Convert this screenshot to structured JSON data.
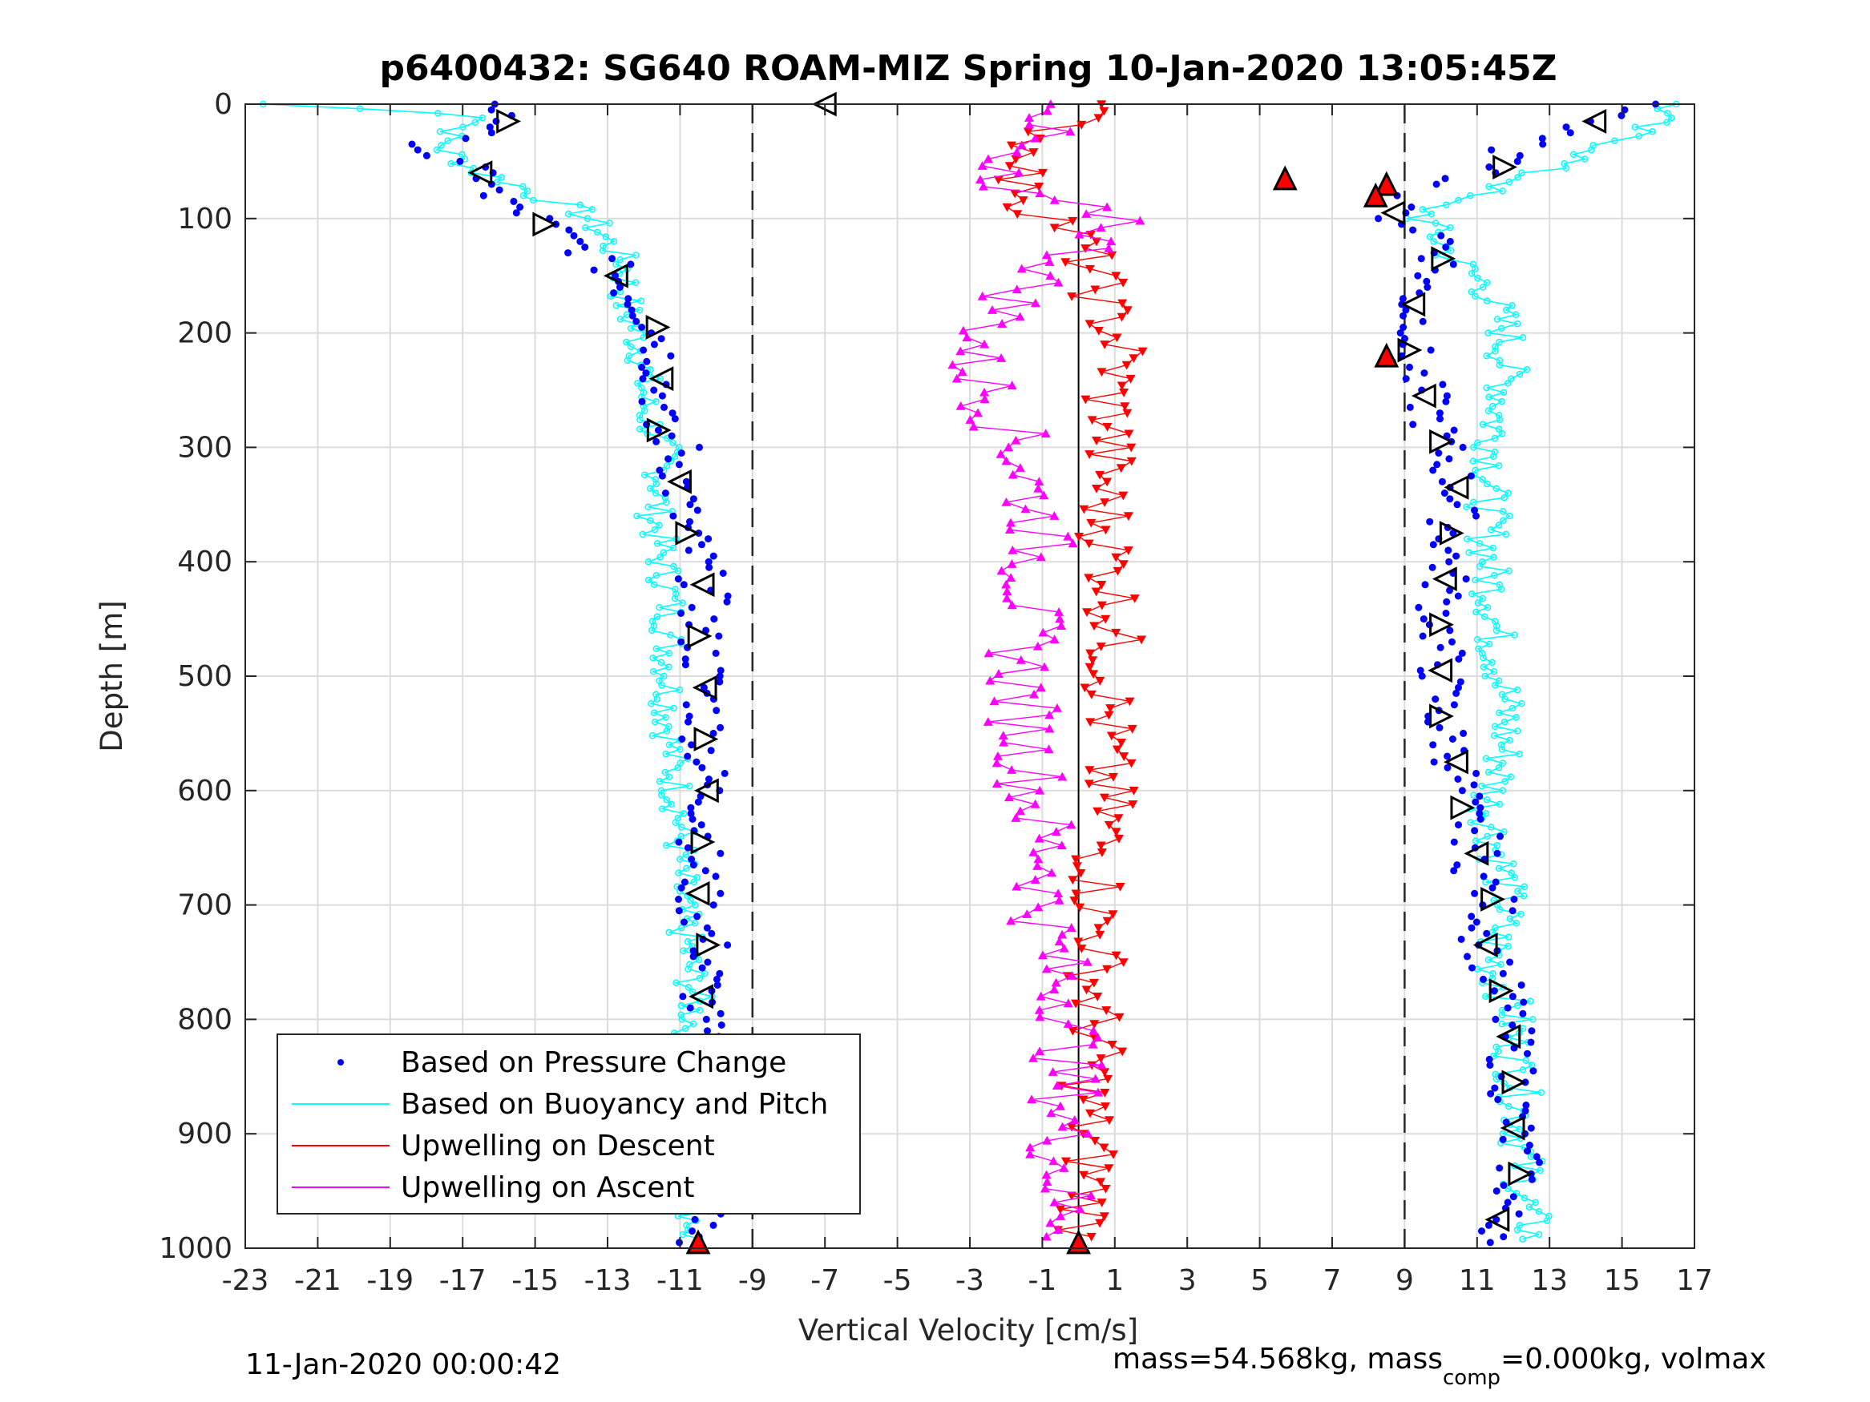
{
  "chart_data": {
    "type": "scatter",
    "title": "p6400432: SG640 ROAM-MIZ Spring 10-Jan-2020 13:05:45Z",
    "xlabel": "Vertical Velocity [cm/s]",
    "ylabel": "Depth [m]",
    "xlim": [
      -23,
      17
    ],
    "ylim": [
      1000,
      0
    ],
    "x_ticks": [
      "-23",
      "-21",
      "-19",
      "-17",
      "-15",
      "-13",
      "-11",
      "-9",
      "-7",
      "-5",
      "-3",
      "-1",
      "1",
      "3",
      "5",
      "7",
      "9",
      "11",
      "13",
      "15",
      "17"
    ],
    "y_ticks": [
      "0",
      "100",
      "200",
      "300",
      "400",
      "500",
      "600",
      "700",
      "800",
      "900",
      "1000"
    ],
    "grid": true,
    "reference_lines": {
      "dashed_x": [
        -9,
        9
      ],
      "solid_x": [
        0
      ]
    },
    "legend_position": "bottom-left",
    "series": [
      {
        "name": "Based on Pressure Change",
        "color": "#0000ff",
        "marker": "dot",
        "descent": {
          "depth": [
            0,
            10,
            20,
            30,
            40,
            50,
            60,
            70,
            80,
            90,
            100,
            120,
            140,
            160,
            180,
            200,
            220,
            240,
            260,
            280,
            300,
            330,
            360,
            400,
            430,
            460,
            500,
            540,
            580,
            620,
            660,
            700,
            740,
            780,
            820,
            860,
            900,
            940,
            980,
            995
          ],
          "values": [
            -16.5,
            -15.5,
            -16,
            -17.5,
            -18,
            -17.5,
            -16.5,
            -16,
            -16.5,
            -15.5,
            -15,
            -14,
            -13,
            -12.5,
            -12,
            -11.5,
            -11.5,
            -11.5,
            -11.5,
            -11.8,
            -11,
            -11,
            -11,
            -10.5,
            -10.3,
            -10.5,
            -10.3,
            -10.3,
            -10.3,
            -10.2,
            -10.5,
            -10.5,
            -10.2,
            -10.4,
            -10.5,
            -10.7,
            -10.4,
            -10.2,
            -10.5,
            -10.7
          ]
        },
        "ascent": {
          "depth": [
            995,
            980,
            960,
            940,
            900,
            870,
            850,
            820,
            790,
            760,
            730,
            700,
            670,
            640,
            610,
            580,
            540,
            500,
            470,
            440,
            400,
            370,
            340,
            310,
            280,
            250,
            220,
            200,
            180,
            160,
            140,
            120,
            100,
            85,
            70,
            60,
            50,
            40,
            30,
            20,
            10,
            0
          ],
          "values": [
            12,
            11.5,
            11.8,
            12.2,
            12,
            12,
            12,
            11.9,
            11.8,
            11.5,
            11.2,
            11.5,
            11,
            11,
            10.5,
            10.5,
            10,
            10,
            10,
            10,
            10.2,
            10.3,
            10.5,
            10.2,
            9.8,
            9.5,
            9,
            9.5,
            9.2,
            9.4,
            10,
            10.2,
            8.8,
            8.5,
            9.5,
            12,
            11.5,
            12,
            12.5,
            13.5,
            15,
            16
          ]
        }
      },
      {
        "name": "Based on Buoyancy and Pitch",
        "color": "#00ffff",
        "marker": "circle",
        "descent": {
          "depth": [
            0,
            10,
            20,
            30,
            40,
            50,
            60,
            70,
            80,
            90,
            100,
            120,
            140,
            160,
            180,
            200,
            220,
            240,
            260,
            280,
            300,
            330,
            360,
            400,
            430,
            460,
            500,
            540,
            580,
            620,
            660,
            700,
            740,
            780,
            820,
            860,
            900,
            940,
            980,
            995
          ],
          "values": [
            -22.5,
            -16,
            -17,
            -17.5,
            -17.5,
            -17,
            -16.5,
            -15.5,
            -15,
            -14,
            -13.5,
            -13,
            -12.5,
            -12.5,
            -12.5,
            -12.2,
            -12,
            -12,
            -12,
            -11.8,
            -11.5,
            -11.5,
            -11.7,
            -11.5,
            -11.3,
            -11.3,
            -11.3,
            -11.3,
            -11.2,
            -11,
            -11,
            -11,
            -10.8,
            -10.6,
            -10.7,
            -10.8,
            -10.6,
            -10.5,
            -10.6,
            -10.7
          ]
        },
        "ascent": {
          "depth": [
            995,
            980,
            960,
            940,
            900,
            870,
            850,
            820,
            790,
            760,
            730,
            700,
            670,
            640,
            610,
            580,
            540,
            500,
            470,
            440,
            400,
            370,
            340,
            310,
            280,
            250,
            220,
            200,
            180,
            160,
            140,
            120,
            100,
            85,
            70,
            60,
            50,
            40,
            30,
            20,
            10,
            0
          ],
          "values": [
            12.5,
            12.5,
            12.3,
            12.3,
            12.2,
            12.2,
            12.1,
            12,
            12,
            11.5,
            11.5,
            11.8,
            11.7,
            11.5,
            11.3,
            11.7,
            11.8,
            11.7,
            11.5,
            11.5,
            11.3,
            11.3,
            11.3,
            11.5,
            11.5,
            11.8,
            11.8,
            11.8,
            11.5,
            11.3,
            10.5,
            10,
            9.5,
            10,
            12,
            12.5,
            13.5,
            14.5,
            15,
            15.5,
            16,
            16.5
          ]
        }
      },
      {
        "name": "Upwelling on Descent",
        "color": "#ff0000",
        "marker": "triangle-down",
        "depth": [
          0,
          10,
          20,
          30,
          40,
          50,
          60,
          70,
          80,
          90,
          100,
          120,
          140,
          160,
          180,
          200,
          220,
          240,
          260,
          280,
          300,
          340,
          380,
          420,
          460,
          500,
          540,
          580,
          620,
          660,
          700,
          740,
          780,
          820,
          860,
          900,
          940,
          960,
          980,
          995
        ],
        "values": [
          0.5,
          0,
          -0.5,
          -1,
          -1.5,
          -1,
          -1.5,
          -2,
          -1,
          -1.5,
          -0.5,
          0,
          0.3,
          0.5,
          0.7,
          1,
          1.2,
          1,
          0.8,
          1,
          0.8,
          0.7,
          0.8,
          1,
          1,
          0.9,
          0.8,
          0.7,
          0.8,
          0.6,
          0.5,
          0.6,
          0.4,
          0.5,
          0.3,
          0.2,
          0.4,
          0.3,
          0.2,
          0.1
        ]
      },
      {
        "name": "Upwelling on Ascent",
        "color": "#ff00ff",
        "marker": "triangle-up",
        "depth": [
          995,
          980,
          960,
          940,
          900,
          870,
          850,
          820,
          790,
          760,
          730,
          700,
          670,
          640,
          610,
          580,
          540,
          500,
          470,
          440,
          400,
          370,
          340,
          310,
          280,
          250,
          220,
          200,
          180,
          160,
          140,
          120,
          100,
          85,
          70,
          60,
          50,
          40,
          30,
          20,
          10,
          0
        ],
        "values": [
          -0.3,
          -0.2,
          -0.5,
          -0.4,
          -0.5,
          -0.3,
          -0.4,
          -0.2,
          -0.1,
          -0.6,
          -0.8,
          -1,
          -0.7,
          -1,
          -1.2,
          -1.3,
          -1.5,
          -1.6,
          -1.5,
          -1.4,
          -1.2,
          -1,
          -1.3,
          -1.5,
          -2,
          -2.5,
          -3,
          -2.5,
          -2,
          -1.5,
          -0.5,
          0.5,
          1.5,
          -1,
          -3,
          -2.5,
          -3,
          -2,
          -1.5,
          -1,
          -0.5,
          0
        ]
      }
    ],
    "markers": [
      {
        "depth": 0,
        "value": -7,
        "shape": "triangle-left",
        "fill": "#ffffff"
      },
      {
        "depth": 65,
        "value": 5.7,
        "shape": "triangle-up",
        "fill": "#ff0000"
      },
      {
        "depth": 995,
        "value": -10.5,
        "shape": "triangle-up",
        "fill": "#ff0000"
      },
      {
        "depth": 995,
        "value": 0,
        "shape": "triangle-up",
        "fill": "#ff0000"
      },
      {
        "depth": 70,
        "value": 8.5,
        "shape": "triangle-up",
        "fill": "#ff0000"
      },
      {
        "depth": 80,
        "value": 8.2,
        "shape": "triangle-up",
        "fill": "#ff0000"
      },
      {
        "depth": 220,
        "value": 8.5,
        "shape": "triangle-up",
        "fill": "#ff0000"
      }
    ]
  },
  "legend": {
    "items": [
      {
        "label": "Based on Pressure Change",
        "color": "#0000ff",
        "kind": "dot"
      },
      {
        "label": "Based on Buoyancy and Pitch",
        "color": "#00ffff",
        "kind": "line"
      },
      {
        "label": "Upwelling on Descent",
        "color": "#ff0000",
        "kind": "line"
      },
      {
        "label": "Upwelling on Ascent",
        "color": "#ff00ff",
        "kind": "line"
      }
    ]
  },
  "footer": {
    "timestamp": "11-Jan-2020 00:00:42",
    "mass_text_1": "mass=54.568kg, mass",
    "mass_sub": "comp",
    "mass_text_2": "=0.000kg, volmax"
  }
}
